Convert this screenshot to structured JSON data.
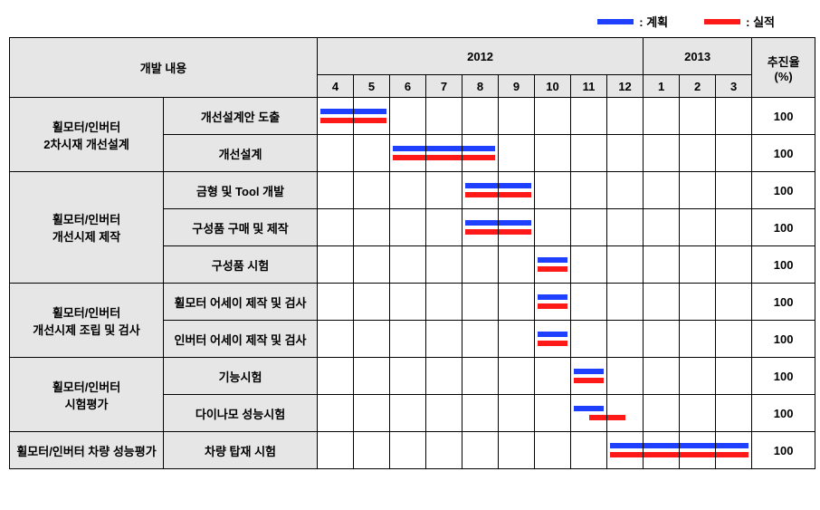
{
  "colors": {
    "plan": "#2040ff",
    "actual": "#ff1a1a",
    "header_bg": "#e6e6e6",
    "border": "#000000",
    "background": "#ffffff"
  },
  "legend": {
    "plan_label": ": 계획",
    "actual_label": ": 실적"
  },
  "header": {
    "category": "개발 내용",
    "years": [
      "2012",
      "2013"
    ],
    "months": [
      "4",
      "5",
      "6",
      "7",
      "8",
      "9",
      "10",
      "11",
      "12",
      "1",
      "2",
      "3"
    ],
    "rate": "추진율\n(%)"
  },
  "months_per_year": {
    "2012": 9,
    "2013": 3
  },
  "groups": [
    {
      "name": "휠모터/인버터\n2차시재 개선설계",
      "tasks": [
        {
          "name": "개선설계안 도출",
          "plan": [
            0,
            1
          ],
          "actual": [
            0,
            1
          ],
          "rate": 100
        },
        {
          "name": "개선설계",
          "plan": [
            2,
            3,
            4
          ],
          "actual": [
            2,
            3,
            4
          ],
          "rate": 100
        }
      ]
    },
    {
      "name": "휠모터/인버터\n개선시제 제작",
      "tasks": [
        {
          "name": "금형 및 Tool 개발",
          "plan": [
            4,
            5
          ],
          "actual": [
            4,
            5
          ],
          "rate": 100
        },
        {
          "name": "구성품 구매 및 제작",
          "plan": [
            4,
            5
          ],
          "actual": [
            4,
            5
          ],
          "rate": 100
        },
        {
          "name": "구성품 시험",
          "plan": [
            6
          ],
          "actual": [
            6
          ],
          "rate": 100
        }
      ]
    },
    {
      "name": "휠모터/인버터\n개선시제 조립 및 검사",
      "tasks": [
        {
          "name": "휠모터 어세이 제작 및 검사",
          "plan": [
            6
          ],
          "actual": [
            6
          ],
          "rate": 100
        },
        {
          "name": "인버터 어세이 제작 및 검사",
          "plan": [
            6
          ],
          "actual": [
            6
          ],
          "rate": 100
        }
      ]
    },
    {
      "name": "휠모터/인버터\n시험평가",
      "tasks": [
        {
          "name": "기능시험",
          "plan": [
            7
          ],
          "actual": [
            7
          ],
          "rate": 100
        },
        {
          "name": "다이나모 성능시험",
          "plan": [
            7
          ],
          "actual": [
            7,
            8
          ],
          "plan_offset": "end",
          "actual_offset": "shift",
          "rate": 100
        }
      ]
    },
    {
      "name": "휠모터/인버터 차량 성능평가",
      "tasks": [
        {
          "name": "차량 탑재 시험",
          "plan": [
            8,
            9,
            10,
            11
          ],
          "actual": [
            8,
            9,
            10,
            11
          ],
          "rate": 100
        }
      ]
    }
  ]
}
